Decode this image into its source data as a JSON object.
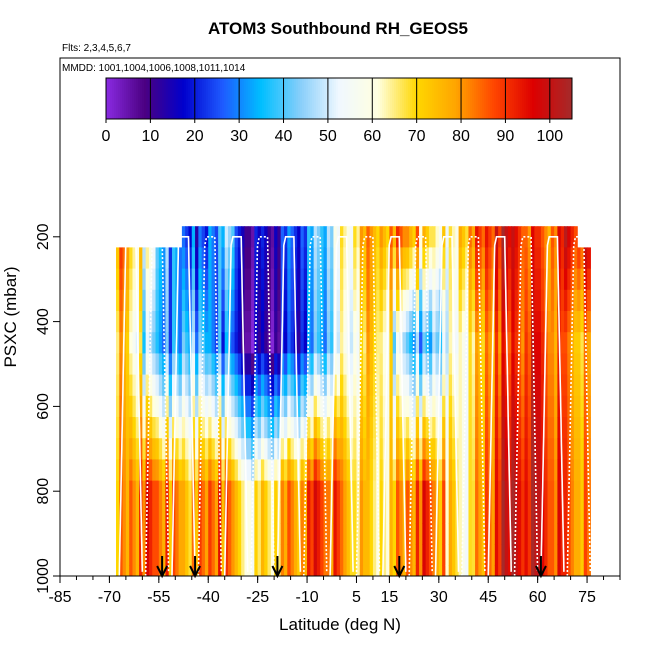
{
  "chart_data": {
    "type": "heatmap",
    "title": "ATOM3 Southbound RH_GEOS5",
    "flights_label": "Flts: 2,3,4,5,6,7",
    "dates_label": "MMDD: 1001,1004,1006,1008,1011,1014",
    "xlabel": "Latitude (deg N)",
    "ylabel": "PSXC (mbar)",
    "xlim": [
      -85,
      85
    ],
    "ylim": [
      1000,
      0
    ],
    "x_ticks": [
      -85,
      -70,
      -55,
      -40,
      -25,
      -10,
      5,
      15,
      30,
      45,
      60,
      75
    ],
    "x_tick_labels": [
      "-85",
      "-70",
      "-55",
      "-40",
      "-25",
      "-10",
      "5",
      "15",
      "30",
      "45",
      "60",
      "75"
    ],
    "y_ticks": [
      200,
      400,
      600,
      800,
      1000
    ],
    "y_tick_labels": [
      "200",
      "400",
      "600",
      "800",
      "1000"
    ],
    "colorbar": {
      "range": [
        0,
        105
      ],
      "ticks": [
        0,
        10,
        20,
        30,
        40,
        50,
        60,
        70,
        80,
        90,
        100
      ],
      "tick_labels": [
        "0",
        "10",
        "20",
        "30",
        "40",
        "50",
        "60",
        "70",
        "80",
        "90",
        "100"
      ],
      "colors": [
        "#8a2be2",
        "#4b0082",
        "#0000cd",
        "#1e5aff",
        "#00bfff",
        "#87cefa",
        "#f0f8ff",
        "#ffffe0",
        "#ffd700",
        "#ffa500",
        "#ff4500",
        "#dd0000",
        "#a52a2a"
      ]
    },
    "profile_markers_lat": [
      -54,
      -44,
      -19,
      18,
      61
    ],
    "rh_by_latitude_band": {
      "latitudes": [
        -68,
        -64,
        -60,
        -56,
        -52,
        -48,
        -44,
        -40,
        -36,
        -32,
        -28,
        -24,
        -20,
        -16,
        -12,
        -8,
        -4,
        0,
        4,
        8,
        12,
        16,
        20,
        24,
        28,
        32,
        36,
        40,
        44,
        48,
        52,
        56,
        60,
        64,
        68,
        72
      ],
      "pressure_levels": [
        200,
        250,
        300,
        350,
        400,
        450,
        500,
        550,
        600,
        650,
        700,
        750,
        800,
        850,
        900,
        950,
        1000
      ],
      "upper_trop_rh": [
        85,
        70,
        60,
        40,
        30,
        25,
        20,
        30,
        40,
        20,
        15,
        15,
        20,
        25,
        30,
        40,
        50,
        60,
        70,
        75,
        80,
        85,
        80,
        70,
        65,
        60,
        75,
        85,
        90,
        95,
        95,
        90,
        85,
        90,
        95,
        95
      ],
      "mid_trop_rh": [
        75,
        60,
        45,
        35,
        30,
        40,
        35,
        30,
        25,
        15,
        10,
        10,
        15,
        20,
        25,
        35,
        45,
        55,
        60,
        70,
        65,
        50,
        40,
        35,
        45,
        55,
        60,
        70,
        80,
        85,
        90,
        95,
        90,
        85,
        80,
        75
      ],
      "boundary_layer_rh": [
        80,
        85,
        90,
        85,
        80,
        75,
        80,
        85,
        80,
        70,
        65,
        70,
        75,
        80,
        85,
        90,
        85,
        75,
        70,
        65,
        70,
        80,
        85,
        90,
        80,
        70,
        60,
        75,
        85,
        95,
        100,
        100,
        95,
        90,
        85,
        80
      ]
    }
  }
}
